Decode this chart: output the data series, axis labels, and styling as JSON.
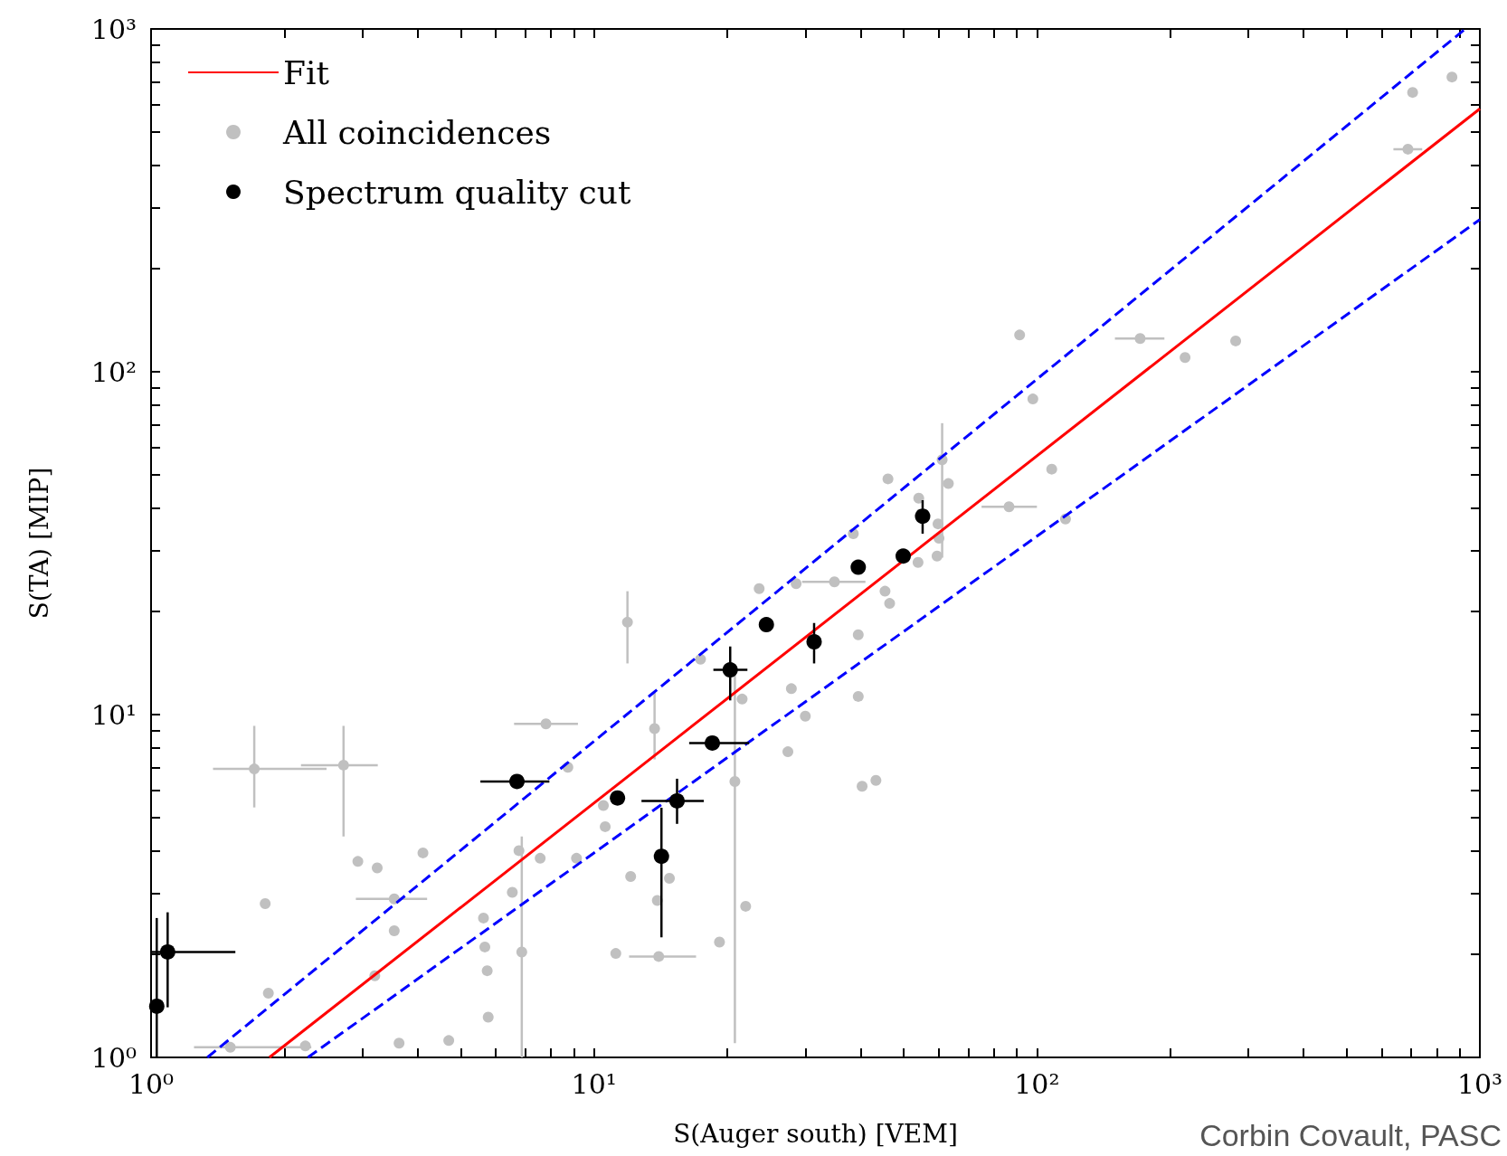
{
  "chart_data": {
    "type": "scatter",
    "xlabel": "S(Auger south) [VEM]",
    "ylabel": "S(TA) [MIP]",
    "annotations": [
      "Corbin Covault, PASC"
    ],
    "log": "xy",
    "grid": false,
    "legend": "top left",
    "xlim": [
      1,
      1000
    ],
    "ylim": [
      1,
      1000
    ],
    "xticks": [
      {
        "value": 1,
        "label": "10⁰"
      },
      {
        "value": 2,
        "label": null
      },
      {
        "value": 3,
        "label": null
      },
      {
        "value": 4,
        "label": null
      },
      {
        "value": 5,
        "label": null
      },
      {
        "value": 6,
        "label": null
      },
      {
        "value": 7,
        "label": null
      },
      {
        "value": 8,
        "label": null
      },
      {
        "value": 9,
        "label": null
      },
      {
        "value": 10,
        "label": "10¹"
      },
      {
        "value": 20,
        "label": null
      },
      {
        "value": 30,
        "label": null
      },
      {
        "value": 40,
        "label": null
      },
      {
        "value": 50,
        "label": null
      },
      {
        "value": 60,
        "label": null
      },
      {
        "value": 70,
        "label": null
      },
      {
        "value": 80,
        "label": null
      },
      {
        "value": 90,
        "label": null
      },
      {
        "value": 100,
        "label": "10²"
      },
      {
        "value": 200,
        "label": null
      },
      {
        "value": 300,
        "label": null
      },
      {
        "value": 400,
        "label": null
      },
      {
        "value": 500,
        "label": null
      },
      {
        "value": 600,
        "label": null
      },
      {
        "value": 700,
        "label": null
      },
      {
        "value": 800,
        "label": null
      },
      {
        "value": 900,
        "label": null
      },
      {
        "value": 1000,
        "label": "10³"
      }
    ],
    "yticks": [
      {
        "value": 1,
        "label": "10⁰"
      },
      {
        "value": 2,
        "label": null
      },
      {
        "value": 3,
        "label": null
      },
      {
        "value": 4,
        "label": null
      },
      {
        "value": 5,
        "label": null
      },
      {
        "value": 6,
        "label": null
      },
      {
        "value": 7,
        "label": null
      },
      {
        "value": 8,
        "label": null
      },
      {
        "value": 9,
        "label": null
      },
      {
        "value": 10,
        "label": "10¹"
      },
      {
        "value": 20,
        "label": null
      },
      {
        "value": 30,
        "label": null
      },
      {
        "value": 40,
        "label": null
      },
      {
        "value": 50,
        "label": null
      },
      {
        "value": 60,
        "label": null
      },
      {
        "value": 70,
        "label": null
      },
      {
        "value": 80,
        "label": null
      },
      {
        "value": 90,
        "label": null
      },
      {
        "value": 100,
        "label": "10²"
      },
      {
        "value": 200,
        "label": null
      },
      {
        "value": 300,
        "label": null
      },
      {
        "value": 400,
        "label": null
      },
      {
        "value": 500,
        "label": null
      },
      {
        "value": 600,
        "label": null
      },
      {
        "value": 700,
        "label": null
      },
      {
        "value": 800,
        "label": null
      },
      {
        "value": 900,
        "label": null
      },
      {
        "value": 1000,
        "label": "10³"
      }
    ],
    "series": [
      {
        "name": "Fit",
        "type": "line",
        "color": "#ff0000",
        "line_style": "solid",
        "marker": "none",
        "x": [
          1.85,
          1000
        ],
        "values": [
          1,
          585
        ]
      },
      {
        "type": "line",
        "color": "#0000ff",
        "line_style": "dashed",
        "marker": "none",
        "x": [
          1.34,
          927
        ],
        "values": [
          1,
          1000
        ]
      },
      {
        "type": "line",
        "color": "#0000ff",
        "line_style": "dashed",
        "marker": "none",
        "x": [
          2.26,
          1000
        ],
        "values": [
          1,
          278
        ]
      },
      {
        "name": "All coincidences",
        "color": "#c0c0c0",
        "marker": "circle",
        "x": [
          1.71,
          2.72,
          2.93,
          3.24,
          1.81,
          1.84,
          3.54,
          3.54,
          4.11,
          3.2,
          3.63,
          4.7,
          1.51,
          2.23,
          5.63,
          5.67,
          5.74,
          5.77,
          6.54,
          6.77,
          6.87,
          7.56,
          7.79,
          8.73,
          9.13,
          10.5,
          10.6,
          11.2,
          12.1,
          11.9,
          13.7,
          13.9,
          14.0,
          14.8,
          19.2,
          22.0,
          20.8,
          21.6,
          17.4,
          23.6,
          27.9,
          27.4,
          30.0,
          28.6,
          34.9,
          38.5,
          39.5,
          39.5,
          40.3,
          43.3,
          45.4,
          46.5,
          46.1,
          54.1,
          53.9,
          59.5,
          60.1,
          59.8,
          61.1,
          63.1,
          86.5,
          91.4,
          97.9,
          108,
          116,
          171,
          216,
          281,
          688,
          705,
          865
        ],
        "values": [
          6.94,
          7.12,
          3.73,
          3.57,
          2.81,
          1.54,
          2.9,
          2.34,
          3.95,
          1.73,
          1.1,
          1.12,
          1.07,
          1.08,
          2.55,
          2.1,
          1.79,
          1.31,
          3.03,
          4.01,
          2.03,
          3.81,
          9.4,
          7.02,
          3.81,
          5.43,
          4.71,
          2.01,
          3.37,
          18.6,
          9.1,
          2.87,
          1.97,
          3.33,
          2.17,
          2.76,
          6.38,
          11.1,
          14.5,
          23.3,
          11.9,
          7.79,
          9.89,
          24.1,
          24.4,
          33.7,
          17.1,
          11.3,
          6.18,
          6.43,
          22.9,
          21.1,
          48.7,
          42.8,
          27.8,
          29.0,
          32.7,
          36.0,
          55.4,
          47.2,
          40.4,
          128,
          83.3,
          52.0,
          37.2,
          125,
          110,
          123,
          446,
          653,
          724
        ],
        "errors": [
          [
            5.36,
            9.27
          ],
          [
            4.41,
            9.27
          ],
          null,
          null,
          null,
          null,
          null,
          null,
          null,
          null,
          null,
          null,
          null,
          null,
          null,
          null,
          null,
          null,
          null,
          null,
          [
            1.0,
            4.41
          ],
          null,
          null,
          null,
          null,
          null,
          null,
          null,
          null,
          [
            14.1,
            22.9
          ],
          [
            7.4,
            11.6
          ],
          null,
          null,
          null,
          null,
          null,
          [
            1.1,
            14.0
          ],
          null,
          null,
          null,
          null,
          null,
          null,
          null,
          null,
          null,
          null,
          null,
          null,
          null,
          null,
          null,
          null,
          null,
          null,
          null,
          null,
          null,
          [
            28.7,
            70.8
          ],
          null,
          null,
          null,
          null,
          null,
          null,
          null,
          null,
          null,
          null,
          null,
          null
        ],
        "xerrors": [
          [
            1.38,
            2.49
          ],
          [
            2.18,
            3.25
          ],
          null,
          null,
          null,
          null,
          [
            2.9,
            4.2
          ],
          null,
          null,
          null,
          null,
          null,
          [
            1.25,
            2.3
          ],
          null,
          null,
          null,
          null,
          null,
          null,
          null,
          null,
          null,
          [
            6.6,
            9.2
          ],
          null,
          null,
          null,
          null,
          null,
          null,
          null,
          null,
          null,
          [
            12.0,
            17.0
          ],
          null,
          null,
          null,
          null,
          null,
          null,
          null,
          null,
          null,
          null,
          null,
          [
            29.5,
            41
          ],
          null,
          null,
          null,
          null,
          null,
          null,
          null,
          null,
          null,
          null,
          null,
          null,
          null,
          null,
          null,
          [
            75,
            100
          ],
          null,
          null,
          null,
          null,
          [
            150,
            194
          ],
          null,
          null,
          [
            638,
            741
          ],
          null,
          null
        ]
      },
      {
        "name": "Spectrum quality cut",
        "color": "#000000",
        "marker": "circle",
        "x": [
          1.03,
          1.09,
          6.7,
          11.3,
          14.2,
          15.4,
          18.5,
          20.3,
          24.5,
          31.4,
          39.5,
          49.9,
          55.2
        ],
        "values": [
          1.41,
          2.03,
          6.38,
          5.71,
          3.86,
          5.6,
          8.26,
          13.5,
          18.3,
          16.3,
          26.9,
          29.0,
          37.9
        ],
        "errors": [
          [
            1.0,
            2.55
          ],
          [
            1.4,
            2.65
          ],
          null,
          null,
          [
            2.24,
            5.35
          ],
          [
            4.8,
            6.5
          ],
          null,
          [
            11.0,
            15.8
          ],
          null,
          [
            14.1,
            18.5
          ],
          null,
          null,
          [
            33.7,
            42.2
          ]
        ],
        "xerrors": [
          null,
          [
            1.0,
            1.55
          ],
          [
            5.54,
            7.93
          ],
          null,
          null,
          [
            12.8,
            17.7
          ],
          [
            16.4,
            22.4
          ],
          [
            18.6,
            22.2
          ],
          null,
          null,
          null,
          null,
          null
        ]
      }
    ]
  }
}
